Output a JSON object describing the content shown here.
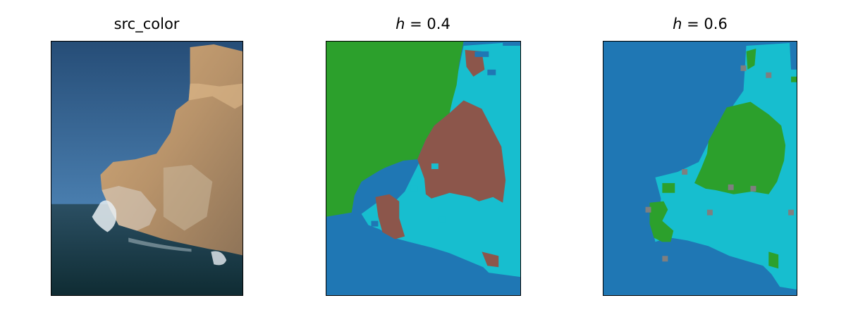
{
  "panels": [
    {
      "title": "src_color"
    },
    {
      "title_var": "h",
      "title_rest": " = 0.4"
    },
    {
      "title_var": "h",
      "title_rest": " = 0.6"
    }
  ],
  "colors": {
    "sky": "#2f5a86",
    "rock": "#c49a6c",
    "sea": "#21414a",
    "cluster_blue": "#1f77b4",
    "cluster_green": "#2ca02c",
    "cluster_cyan": "#17becf",
    "cluster_brown": "#8c564b",
    "cluster_gray": "#7f7f7f"
  }
}
